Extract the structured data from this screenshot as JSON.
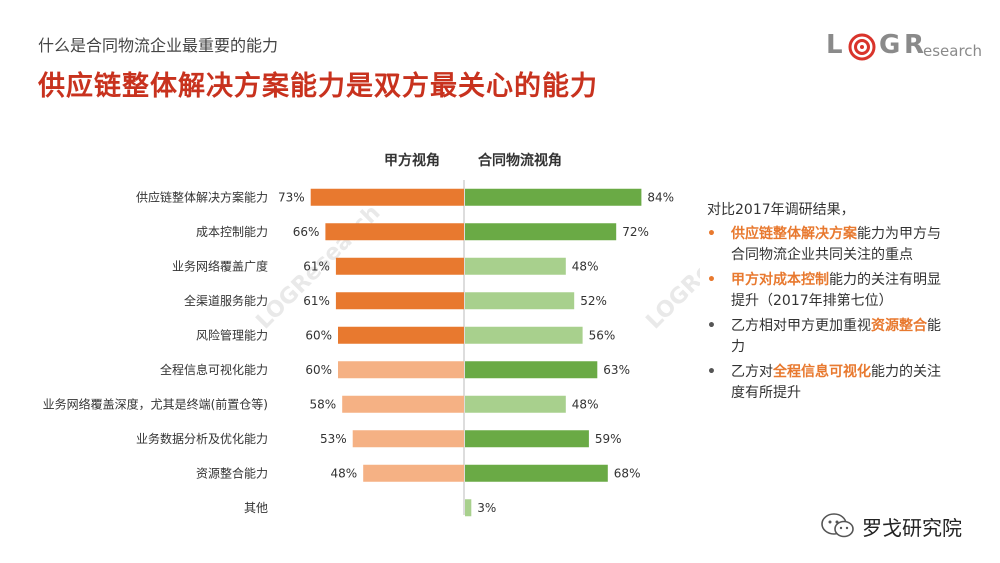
{
  "header": {
    "kicker": "什么是合同物流企业最重要的能力",
    "headline": "供应链整体解决方案能力是双方最关心的能力"
  },
  "logo": {
    "l": "L",
    "g": "G",
    "r": "R",
    "research": "esearch"
  },
  "watermark": "LOGResearch",
  "chart_data": {
    "type": "bar",
    "orientation": "horizontal-diverging",
    "categories": [
      "供应链整体解决方案能力",
      "成本控制能力",
      "业务网络覆盖广度",
      "全渠道服务能力",
      "风险管理能力",
      "全程信息可视化能力",
      "业务网络覆盖深度，尤其是终端(前置仓等)",
      "业务数据分析及优化能力",
      "资源整合能力",
      "其他"
    ],
    "series": [
      {
        "name": "甲方视角",
        "values": [
          73,
          66,
          61,
          61,
          60,
          60,
          58,
          53,
          48,
          null
        ],
        "labels": [
          "73%",
          "66%",
          "61%",
          "61%",
          "60%",
          "60%",
          "58%",
          "53%",
          "48%",
          ""
        ],
        "emphasis": [
          "dark",
          "dark",
          "dark",
          "dark",
          "dark",
          "light",
          "light",
          "light",
          "light",
          "none"
        ]
      },
      {
        "name": "合同物流视角",
        "values": [
          84,
          72,
          48,
          52,
          56,
          63,
          48,
          59,
          68,
          3
        ],
        "labels": [
          "84%",
          "72%",
          "48%",
          "52%",
          "56%",
          "63%",
          "48%",
          "59%",
          "68%",
          "3%"
        ],
        "emphasis": [
          "dark",
          "dark",
          "light",
          "light",
          "light",
          "dark",
          "light",
          "dark",
          "dark",
          "light"
        ]
      }
    ],
    "colors": {
      "left_dark": "#e8792f",
      "left_light": "#f5b184",
      "right_dark": "#6aaa45",
      "right_light": "#a8d08d",
      "axis": "#bbbbbb"
    }
  },
  "notes": {
    "intro": "对比2017年调研结果，",
    "items": [
      {
        "bullet": "•",
        "style": "orange",
        "hl": "供应链整体解决方案",
        "rest": "能力为甲方与合同物流企业共同关注的重点",
        "pre": ""
      },
      {
        "bullet": "•",
        "style": "orange",
        "hl": "甲方对成本控制",
        "rest": "能力的关注有明显提升（2017年排第七位）",
        "pre": ""
      },
      {
        "bullet": "•",
        "style": "gray",
        "pre": "乙方相对甲方更加重视",
        "hl": "资源整合",
        "rest": "能力"
      },
      {
        "bullet": "•",
        "style": "gray",
        "pre": "乙方对",
        "hl": "全程信息可视化",
        "rest": "能力的关注度有所提升"
      }
    ]
  },
  "wechat": {
    "label": "罗戈研究院"
  }
}
